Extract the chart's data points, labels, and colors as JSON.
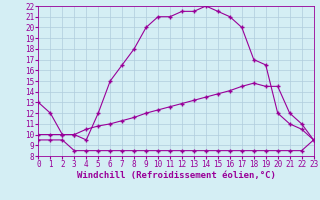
{
  "curve1_x": [
    0,
    1,
    2,
    3,
    4,
    5,
    6,
    7,
    8,
    9,
    10,
    11,
    12,
    13,
    14,
    15,
    16,
    17,
    18,
    19,
    20,
    21,
    22,
    23
  ],
  "curve1_y": [
    13,
    12,
    10,
    10,
    9.5,
    12,
    15,
    16.5,
    18,
    20,
    21,
    21,
    21.5,
    21.5,
    22,
    21.5,
    21,
    20,
    17,
    16.5,
    12,
    11,
    10.5,
    9.5
  ],
  "curve2_x": [
    0,
    1,
    2,
    3,
    4,
    5,
    6,
    7,
    8,
    9,
    10,
    11,
    12,
    13,
    14,
    15,
    16,
    17,
    18,
    19,
    20,
    21,
    22,
    23
  ],
  "curve2_y": [
    10,
    10,
    10,
    10,
    10.5,
    10.8,
    11.0,
    11.3,
    11.6,
    12,
    12.3,
    12.6,
    12.9,
    13.2,
    13.5,
    13.8,
    14.1,
    14.5,
    14.8,
    14.5,
    14.5,
    12.0,
    11.0,
    9.5
  ],
  "curve3_x": [
    0,
    1,
    2,
    3,
    4,
    5,
    6,
    7,
    8,
    9,
    10,
    11,
    12,
    13,
    14,
    15,
    16,
    17,
    18,
    19,
    20,
    21,
    22,
    23
  ],
  "curve3_y": [
    9.5,
    9.5,
    9.5,
    8.5,
    8.5,
    8.5,
    8.5,
    8.5,
    8.5,
    8.5,
    8.5,
    8.5,
    8.5,
    8.5,
    8.5,
    8.5,
    8.5,
    8.5,
    8.5,
    8.5,
    8.5,
    8.5,
    8.5,
    9.5
  ],
  "line_color": "#990099",
  "bg_color": "#d4eef4",
  "grid_color": "#b0ccdd",
  "xlabel": "Windchill (Refroidissement éolien,°C)",
  "xlim": [
    0,
    23
  ],
  "ylim": [
    8,
    22
  ],
  "xticks": [
    0,
    1,
    2,
    3,
    4,
    5,
    6,
    7,
    8,
    9,
    10,
    11,
    12,
    13,
    14,
    15,
    16,
    17,
    18,
    19,
    20,
    21,
    22,
    23
  ],
  "yticks": [
    8,
    9,
    10,
    11,
    12,
    13,
    14,
    15,
    16,
    17,
    18,
    19,
    20,
    21,
    22
  ],
  "tick_fontsize": 5.5,
  "xlabel_fontsize": 6.5
}
